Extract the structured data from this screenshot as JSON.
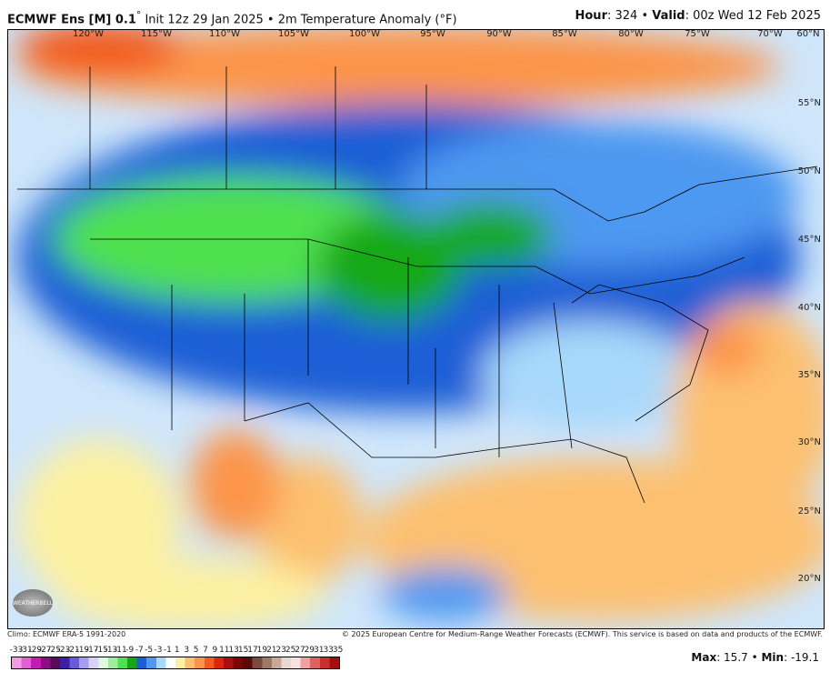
{
  "header": {
    "model": "ECMWF Ens [M] 0.1",
    "deg": "°",
    "init": " Init 12z 29 Jan 2025 • 2m Temperature Anomaly (°F)",
    "hour_label": "Hour",
    "hour": ": 324 • ",
    "valid_label": "Valid",
    "valid": ": 00z Wed 12 Feb 2025"
  },
  "map": {
    "lon_labels": [
      "120°W",
      "115°W",
      "110°W",
      "105°W",
      "100°W",
      "95°W",
      "90°W",
      "85°W",
      "80°W",
      "75°W",
      "70°W",
      "60°N"
    ],
    "lat_labels": [
      "55°N",
      "50°N",
      "45°N",
      "40°N",
      "35°N",
      "30°N",
      "25°N",
      "20°N"
    ],
    "logo": "WEATHERBELL"
  },
  "footer": {
    "climo": "Climo: ECMWF ERA-5 1991-2020",
    "copyright": "© 2025 European Centre for Medium-Range Weather Forecasts (ECMWF). This service is based on data and products of the ECMWF.",
    "max_label": "Max",
    "max": ": 15.7 • ",
    "min_label": "Min",
    "min": ": -19.1"
  },
  "colorbar": {
    "ticks": [
      "-33",
      "-31",
      "-29",
      "-27",
      "-25",
      "-23",
      "-21",
      "-19",
      "-17",
      "-15",
      "-13",
      "-11",
      "-9",
      "-7",
      "-5",
      "-3",
      "-1",
      "1",
      "3",
      "5",
      "7",
      "9",
      "11",
      "13",
      "15",
      "17",
      "19",
      "21",
      "23",
      "25",
      "27",
      "29",
      "31",
      "33",
      "35"
    ],
    "colors": [
      "#f49ae8",
      "#e35fd6",
      "#c21cb6",
      "#8e0c84",
      "#5a0a5a",
      "#3b1fa8",
      "#6a5ad8",
      "#a99cf0",
      "#d8d2fa",
      "#ddfbdd",
      "#9cee9c",
      "#4fe04f",
      "#14a814",
      "#1a5fd6",
      "#4d98f0",
      "#a8d8fb",
      "#ffffff",
      "#fdf0a0",
      "#fdc070",
      "#fc9448",
      "#f25a1e",
      "#d8280c",
      "#a81010",
      "#7a0606",
      "#5a0a0a",
      "#7c4a3a",
      "#a07866",
      "#c8a898",
      "#e8d8d4",
      "#f8e0e0",
      "#f0a0a0",
      "#e06060",
      "#c83030",
      "#a01010"
    ]
  }
}
